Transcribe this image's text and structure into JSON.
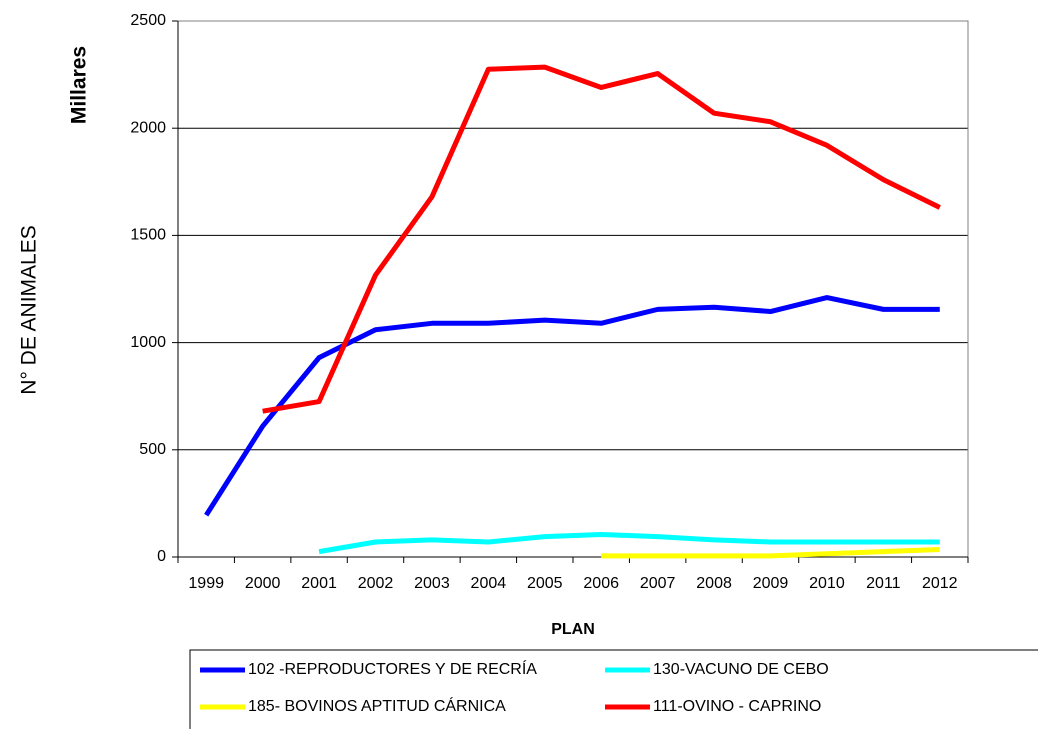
{
  "chart_data": {
    "type": "line",
    "y_label_top": "Millares",
    "y_label": "N° DE ANIMALES",
    "x_label": "PLAN",
    "categories": [
      "1999",
      "2000",
      "2001",
      "2002",
      "2003",
      "2004",
      "2005",
      "2006",
      "2007",
      "2008",
      "2009",
      "2010",
      "2011",
      "2012"
    ],
    "series": [
      {
        "name": "102 -REPRODUCTORES Y DE RECRÍA",
        "color": "#0000ff",
        "values": [
          195,
          610,
          930,
          1060,
          1090,
          1090,
          1105,
          1090,
          1155,
          1165,
          1145,
          1210,
          1155,
          1155
        ]
      },
      {
        "name": "130-VACUNO DE CEBO",
        "color": "#00ffff",
        "values": [
          null,
          null,
          25,
          70,
          80,
          70,
          95,
          105,
          95,
          80,
          70,
          70,
          70,
          70
        ]
      },
      {
        "name": "185- BOVINOS APTITUD CÁRNICA",
        "color": "#ffff00",
        "values": [
          null,
          null,
          null,
          null,
          null,
          null,
          null,
          5,
          5,
          5,
          5,
          15,
          25,
          35
        ]
      },
      {
        "name": "111-OVINO - CAPRINO",
        "color": "#ff0000",
        "values": [
          null,
          680,
          725,
          1315,
          1680,
          2275,
          2285,
          2190,
          2255,
          2070,
          2030,
          1920,
          1760,
          1630
        ]
      }
    ],
    "ylim": [
      0,
      2500
    ],
    "yticks": [
      0,
      500,
      1000,
      1500,
      2000,
      2500
    ],
    "grid": true
  }
}
